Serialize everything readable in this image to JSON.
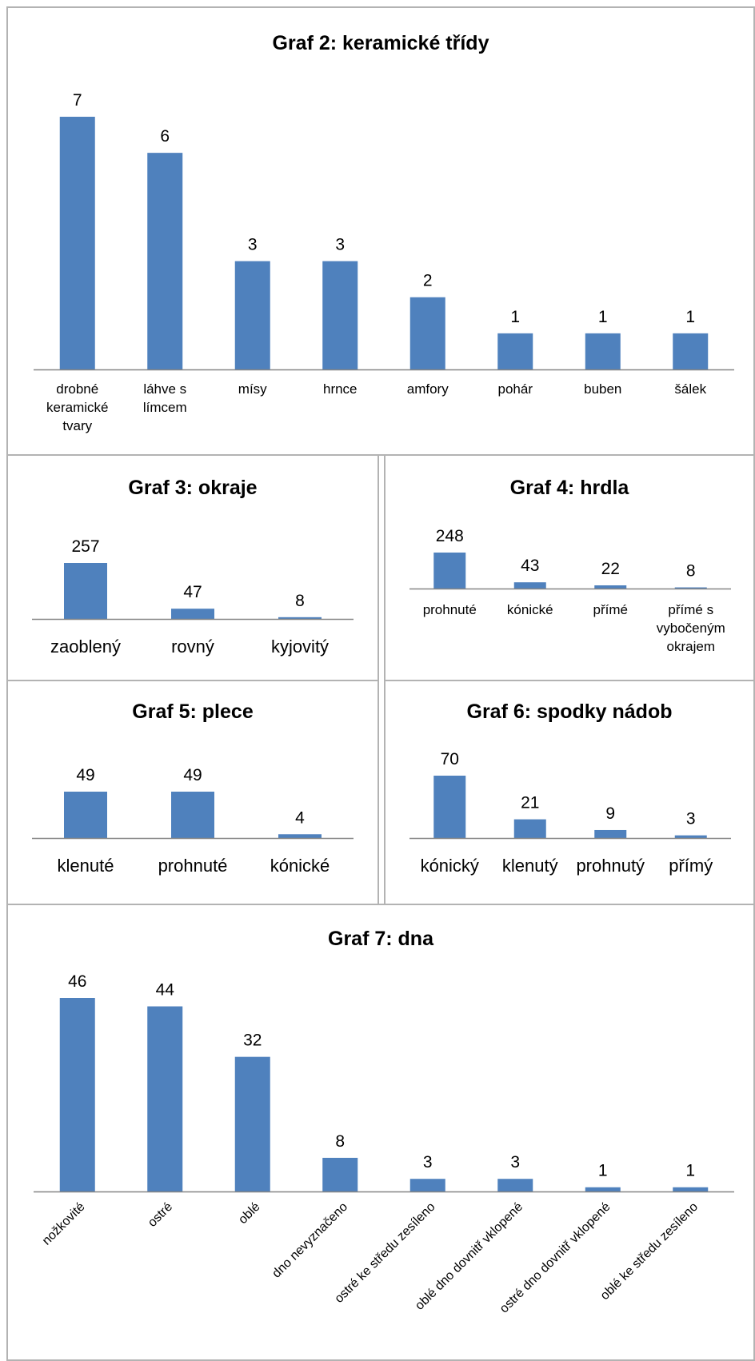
{
  "chart_data": [
    {
      "id": "g2",
      "type": "bar",
      "title": "Graf 2: keramické třídy",
      "categories": [
        [
          "drobné",
          "keramické",
          "tvary"
        ],
        [
          "láhve s",
          "límcem"
        ],
        [
          "mísy"
        ],
        [
          "hrnce"
        ],
        [
          "amfory"
        ],
        [
          "pohár"
        ],
        [
          "buben"
        ],
        [
          "šálek"
        ]
      ],
      "values": [
        7,
        6,
        3,
        3,
        2,
        1,
        1,
        1
      ],
      "ylim": [
        0,
        7
      ],
      "grid": false,
      "color": "#4f81bd"
    },
    {
      "id": "g3",
      "type": "bar",
      "title": "Graf 3: okraje",
      "categories": [
        [
          "zaoblený"
        ],
        [
          "rovný"
        ],
        [
          "kyjovitý"
        ]
      ],
      "values": [
        257,
        47,
        8
      ],
      "ylim": [
        0,
        257
      ],
      "grid": false,
      "color": "#4f81bd"
    },
    {
      "id": "g4",
      "type": "bar",
      "title": "Graf 4: hrdla",
      "categories": [
        [
          "prohnuté"
        ],
        [
          "kónické"
        ],
        [
          "přímé"
        ],
        [
          "přímé s",
          "vybočeným",
          "okrajem"
        ]
      ],
      "values": [
        248,
        43,
        22,
        8
      ],
      "ylim": [
        0,
        248
      ],
      "grid": false,
      "color": "#4f81bd"
    },
    {
      "id": "g5",
      "type": "bar",
      "title": "Graf 5: plece",
      "categories": [
        [
          "klenuté"
        ],
        [
          "prohnuté"
        ],
        [
          "kónické"
        ]
      ],
      "values": [
        49,
        49,
        4
      ],
      "ylim": [
        0,
        49
      ],
      "grid": false,
      "color": "#4f81bd"
    },
    {
      "id": "g6",
      "type": "bar",
      "title": "Graf 6: spodky nádob",
      "categories": [
        [
          "kónický"
        ],
        [
          "klenutý"
        ],
        [
          "prohnutý"
        ],
        [
          "přímý"
        ]
      ],
      "values": [
        70,
        21,
        9,
        3
      ],
      "ylim": [
        0,
        70
      ],
      "grid": false,
      "color": "#4f81bd"
    },
    {
      "id": "g7",
      "type": "bar",
      "title": "Graf 7: dna",
      "categories": [
        [
          "nožkovité"
        ],
        [
          "ostré"
        ],
        [
          "oblé"
        ],
        [
          "dno nevyznačeno"
        ],
        [
          "ostré ke středu zesíleno"
        ],
        [
          "oblé dno dovnitř vklopené"
        ],
        [
          "ostré dno dovnitř vklopené"
        ],
        [
          "oblé ke středu zesíleno"
        ]
      ],
      "values": [
        46,
        44,
        32,
        8,
        3,
        3,
        1,
        1
      ],
      "ylim": [
        0,
        46
      ],
      "grid": false,
      "color": "#4f81bd"
    }
  ]
}
